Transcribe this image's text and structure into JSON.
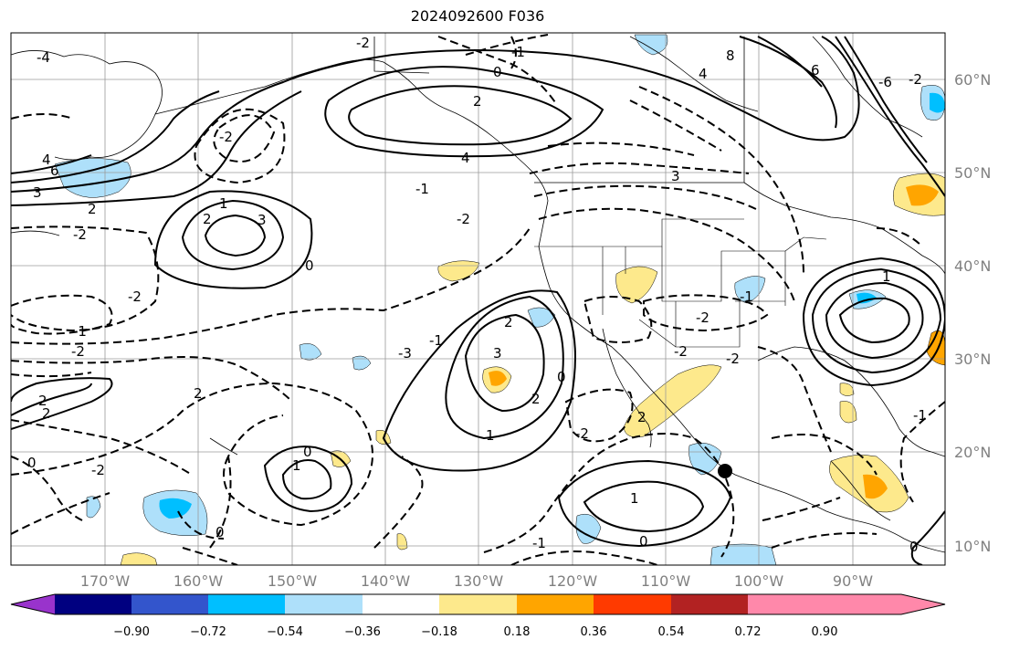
{
  "title": "2024092600 F036",
  "map": {
    "lat_labels": [
      "60°N",
      "50°N",
      "40°N",
      "30°N",
      "20°N",
      "10°N"
    ],
    "lon_labels": [
      "170°W",
      "160°W",
      "150°W",
      "140°W",
      "130°W",
      "120°W",
      "110°W",
      "100°W",
      "90°W"
    ],
    "contour_labels": [
      "-2",
      "-1",
      "0",
      "2",
      "4",
      "8",
      "-1",
      "-2",
      "4",
      "3",
      "-4",
      "6",
      "4",
      "6",
      "-6",
      "3",
      "2",
      "-2",
      "2",
      "3",
      "1",
      "-2",
      "-2",
      "-1",
      "0",
      "-2",
      "2",
      "-3",
      "2",
      "3",
      "-2",
      "-1",
      "2",
      "0",
      "2",
      "-2",
      "2",
      "-2",
      "-2",
      "1",
      "2",
      "1",
      "-1",
      "0",
      "-2",
      "1",
      "-1",
      "0",
      "1",
      "-1",
      "0",
      "0",
      "-2",
      "0"
    ],
    "marker": "storm-center"
  },
  "colorbar": {
    "tick_labels": [
      "−0.90",
      "−0.72",
      "−0.54",
      "−0.36",
      "−0.18",
      "0.18",
      "0.36",
      "0.54",
      "0.72",
      "0.90"
    ],
    "colors": [
      "#9933cc",
      "#000080",
      "#3355cc",
      "#00bfff",
      "#aee0fa",
      "#ffffff",
      "#fde98c",
      "#ffa500",
      "#ff3a00",
      "#b22222",
      "#ff88aa"
    ]
  }
}
